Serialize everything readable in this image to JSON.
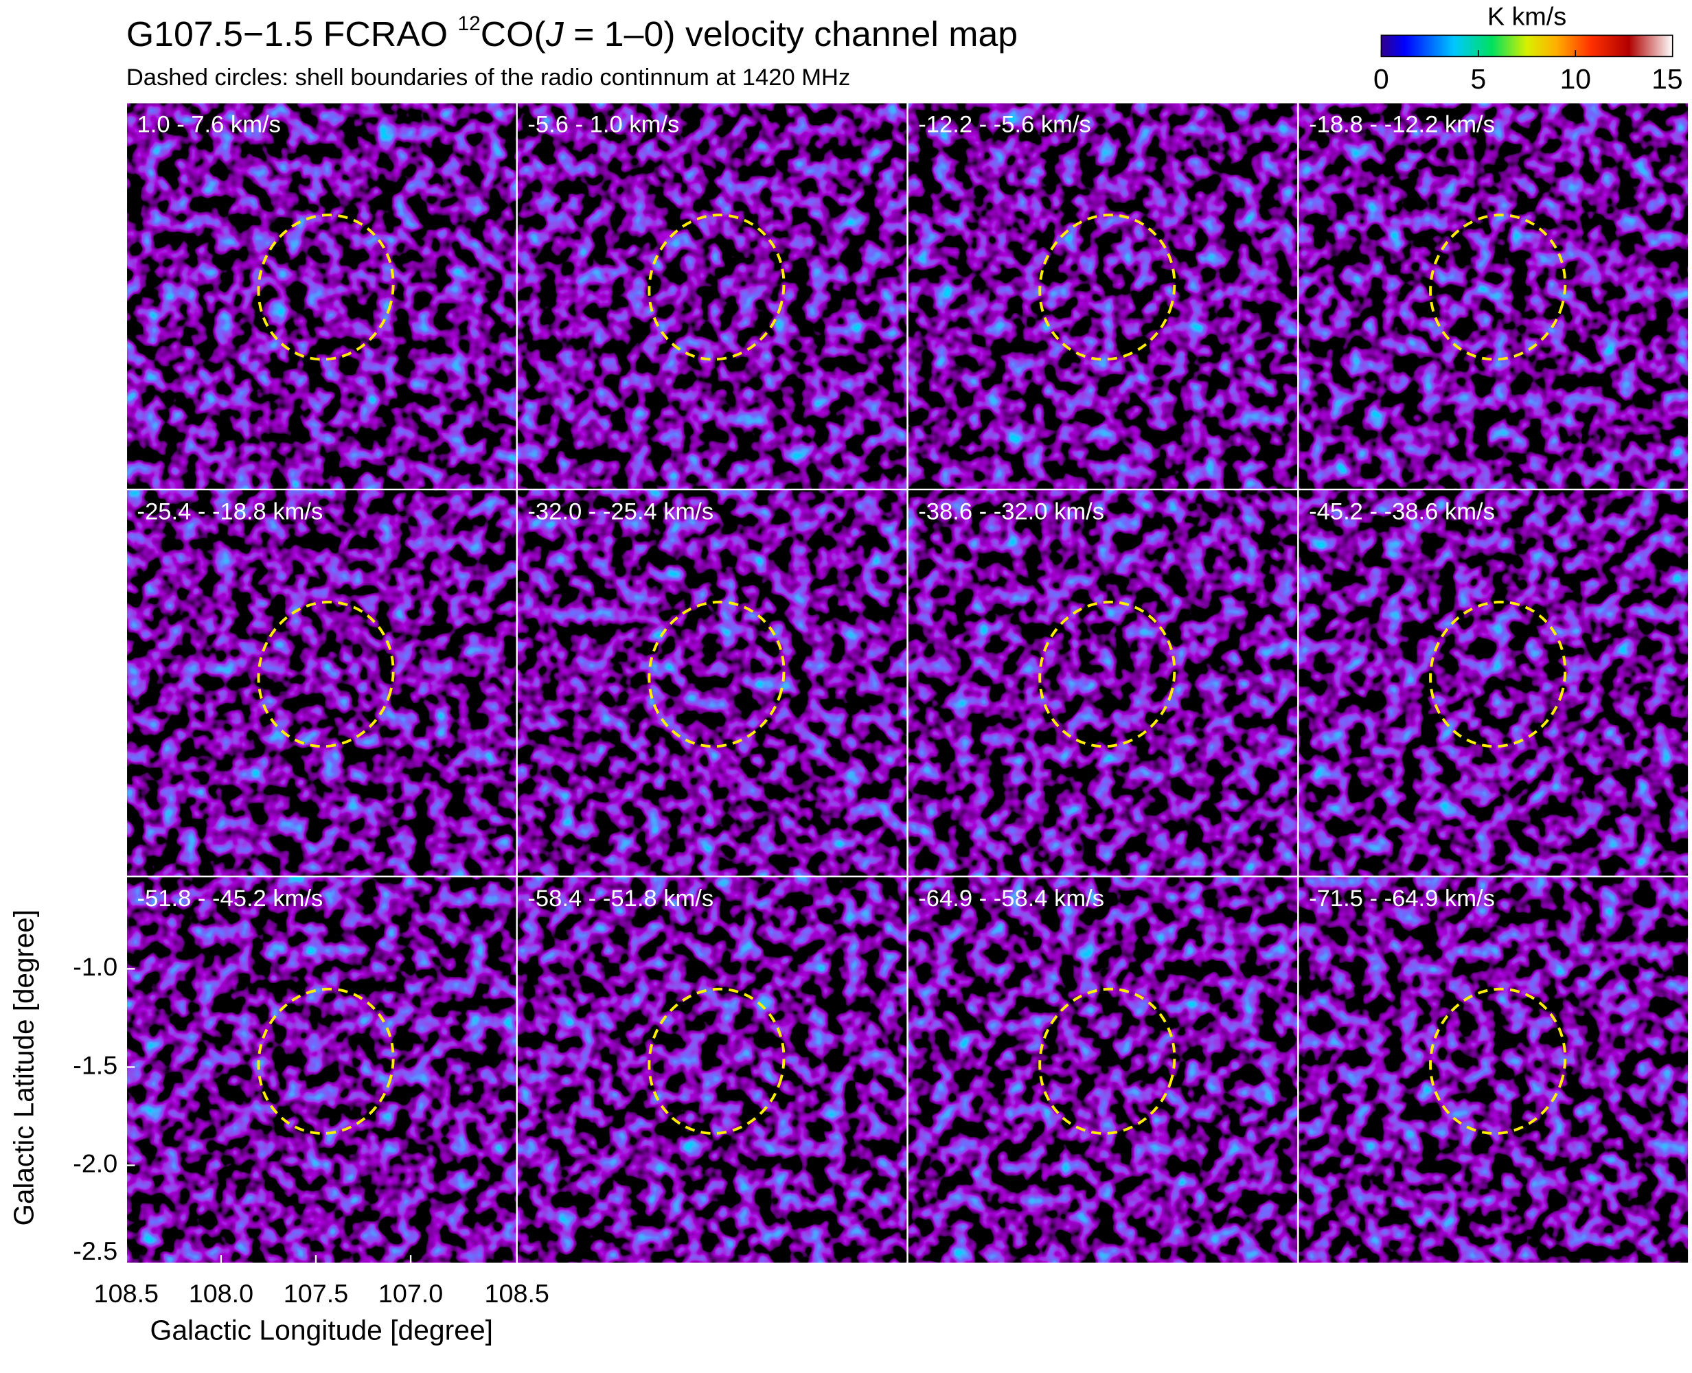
{
  "chart_data": {
    "type": "channel-map",
    "title_parts": [
      "G107.5−1.5 FCRAO ",
      "12",
      "CO(",
      "J",
      " = 1–0) velocity channel map"
    ],
    "subtitle": "Dashed circles: shell boundaries of the radio continnum at 1420 MHz",
    "xlabel": "Galactic Longitude [degree]",
    "ylabel": "Galactic Latitude [degree]",
    "xlim": [
      108.5,
      106.44
    ],
    "ylim": [
      -2.5,
      -0.53
    ],
    "xticks": [
      {
        "value": 108.5,
        "label": "108.5"
      },
      {
        "value": 108.0,
        "label": "108.0"
      },
      {
        "value": 107.5,
        "label": "107.5"
      },
      {
        "value": 107.0,
        "label": "107.0"
      }
    ],
    "yticks": [
      {
        "value": -1.0,
        "label": "-1.0"
      },
      {
        "value": -1.5,
        "label": "-1.5"
      },
      {
        "value": -2.0,
        "label": "-2.0"
      },
      {
        "value": -2.5,
        "label": "-2.5"
      }
    ],
    "panels": [
      "1.0 -   7.6 km/s",
      "-5.6 -   1.0 km/s",
      "-12.2 -   -5.6 km/s",
      "-18.8 -  -12.2 km/s",
      "-25.4 -  -18.8 km/s",
      "-32.0 -  -25.4 km/s",
      "-38.6 -  -32.0 km/s",
      "-45.2 -  -38.6 km/s",
      "-51.8 -  -45.2 km/s",
      "-58.4 -  -51.8 km/s",
      "-64.9 -  -58.4 km/s",
      "-71.5 -  -64.9 km/s"
    ],
    "colorbar": {
      "label": "K km/s",
      "clim": [
        0,
        15
      ],
      "ticks": [
        0,
        5,
        10,
        15
      ]
    }
  }
}
